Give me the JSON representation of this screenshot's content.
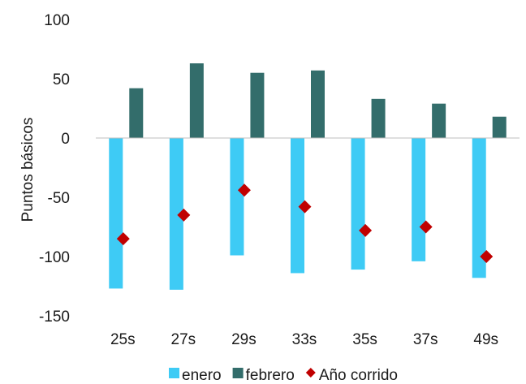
{
  "chart_data": {
    "type": "bar",
    "categories": [
      "25s",
      "27s",
      "29s",
      "33s",
      "35s",
      "37s",
      "49s"
    ],
    "series": [
      {
        "name": "enero",
        "kind": "bar",
        "color": "#3ecbf5",
        "values": [
          -127,
          -128,
          -99,
          -114,
          -111,
          -104,
          -118
        ]
      },
      {
        "name": "febrero",
        "kind": "bar",
        "color": "#336d6b",
        "values": [
          42,
          63,
          55,
          57,
          33,
          29,
          18
        ]
      },
      {
        "name": "Año corrido",
        "kind": "marker",
        "marker": "diamond",
        "color": "#c00000",
        "values": [
          -85,
          -65,
          -44,
          -58,
          -78,
          -75,
          -100
        ]
      }
    ],
    "ylabel": "Puntos básicos",
    "xlabel": "",
    "ylim": [
      -150,
      100
    ],
    "yticks": [
      100,
      50,
      0,
      -50,
      -100,
      -150
    ],
    "grid": false,
    "legend_position": "bottom"
  }
}
